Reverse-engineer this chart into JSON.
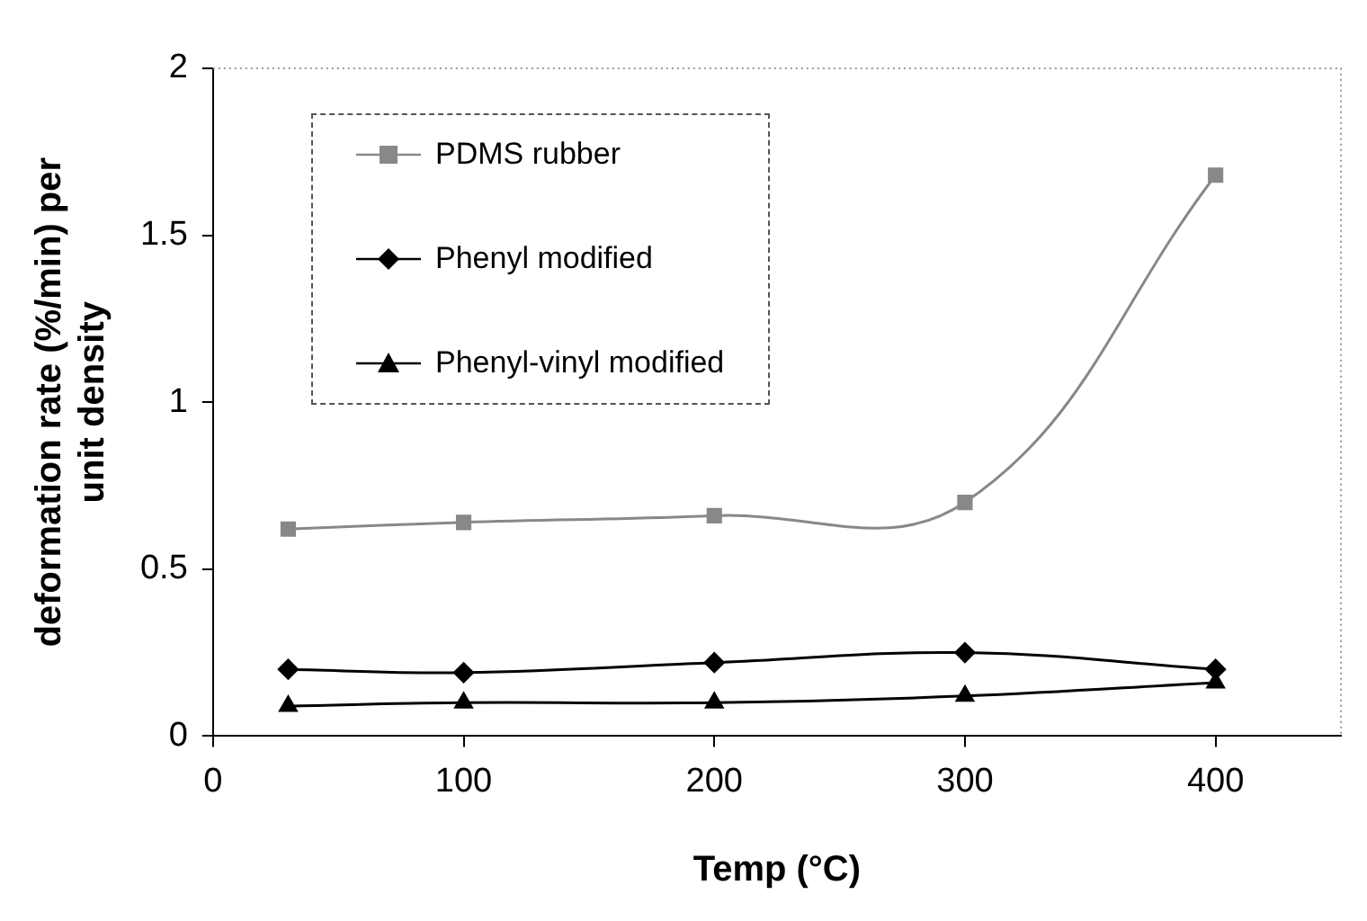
{
  "chart_data": {
    "type": "line",
    "xlabel": "Temp (°C)",
    "ylabel": "deformation rate (%/min) per unit density",
    "x": [
      30,
      100,
      200,
      300,
      400
    ],
    "series": [
      {
        "name": "PDMS rubber",
        "color": "#888888",
        "marker": "square",
        "values": [
          0.62,
          0.64,
          0.66,
          0.7,
          1.68
        ]
      },
      {
        "name": "Phenyl modified",
        "color": "#000000",
        "marker": "diamond",
        "values": [
          0.2,
          0.19,
          0.22,
          0.25,
          0.2
        ]
      },
      {
        "name": "Phenyl-vinyl modified",
        "color": "#000000",
        "marker": "triangle",
        "values": [
          0.09,
          0.1,
          0.1,
          0.12,
          0.16
        ]
      }
    ],
    "xlim": [
      0,
      450
    ],
    "xticks": [
      0,
      100,
      200,
      300,
      400
    ],
    "ylim": [
      0,
      2
    ],
    "yticks": [
      0,
      0.5,
      1,
      1.5,
      2
    ],
    "grid": false,
    "legend": "top left"
  }
}
